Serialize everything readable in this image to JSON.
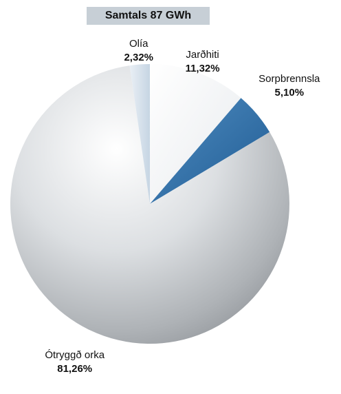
{
  "chart_data": {
    "type": "pie",
    "title": "Samtals 87 GWh",
    "slices": [
      {
        "label": "Jarðhiti",
        "value": 11.32,
        "value_label": "11,32%",
        "color": "#f1f3f5"
      },
      {
        "label": "Sorpbrennsla",
        "value": 5.1,
        "value_label": "5,10%",
        "color": "#2f6fa6"
      },
      {
        "label": "Ótryggð orka",
        "value": 81.26,
        "value_label": "81,26%",
        "color": "#c9ccd0"
      },
      {
        "label": "Olía",
        "value": 2.32,
        "value_label": "2,32%",
        "color": "#d7e3ee"
      }
    ],
    "start": "12 o'clock",
    "direction": "clockwise",
    "legend": "none"
  }
}
